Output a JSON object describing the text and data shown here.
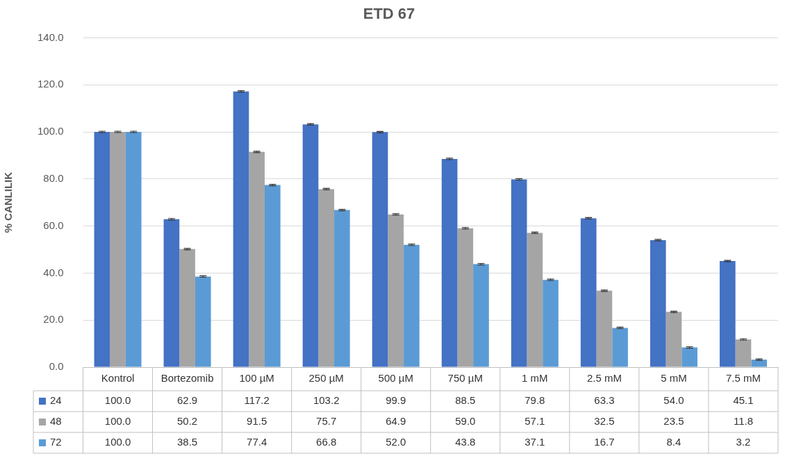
{
  "chart_data": {
    "type": "bar",
    "title": "ETD 67",
    "ylabel": "% CANLILIK",
    "categories": [
      "Kontrol",
      "Bortezomib",
      "100 µM",
      "250 µM",
      "500 µM",
      "750 µM",
      "1 mM",
      "2.5 mM",
      "5 mM",
      "7.5 mM"
    ],
    "series": [
      {
        "name": "24",
        "color": "#4472c4",
        "values": [
          100.0,
          62.9,
          117.2,
          103.2,
          99.9,
          88.5,
          79.8,
          63.3,
          54.0,
          45.1
        ],
        "value_labels": [
          "100.0",
          "62.9",
          "117.2",
          "103.2",
          "99.9",
          "88.5",
          "79.8",
          "63.3",
          "54.0",
          "45.1"
        ],
        "errors": [
          0.3,
          0.3,
          0.3,
          0.3,
          0.3,
          0.3,
          0.3,
          0.3,
          0.3,
          0.3
        ]
      },
      {
        "name": "48",
        "color": "#a5a5a5",
        "values": [
          100.0,
          50.2,
          91.5,
          75.7,
          64.9,
          59.0,
          57.1,
          32.5,
          23.5,
          11.8
        ],
        "value_labels": [
          "100.0",
          "50.2",
          "91.5",
          "75.7",
          "64.9",
          "59.0",
          "57.1",
          "32.5",
          "23.5",
          "11.8"
        ],
        "errors": [
          0.3,
          0.3,
          0.3,
          0.3,
          0.3,
          0.3,
          0.3,
          0.3,
          0.3,
          0.3
        ]
      },
      {
        "name": "72",
        "color": "#5b9bd5",
        "values": [
          100.0,
          38.5,
          77.4,
          66.8,
          52.0,
          43.8,
          37.1,
          16.7,
          8.4,
          3.2
        ],
        "value_labels": [
          "100.0",
          "38.5",
          "77.4",
          "66.8",
          "52.0",
          "43.8",
          "37.1",
          "16.7",
          "8.4",
          "3.2"
        ],
        "errors": [
          0.3,
          0.3,
          0.3,
          0.3,
          0.3,
          0.3,
          0.3,
          0.3,
          0.3,
          0.3
        ]
      }
    ],
    "ylim": [
      0,
      140
    ],
    "yticks": [
      {
        "value": 0,
        "label": "0.0"
      },
      {
        "value": 20,
        "label": "20.0"
      },
      {
        "value": 40,
        "label": "40.0"
      },
      {
        "value": 60,
        "label": "60.0"
      },
      {
        "value": 80,
        "label": "80.0"
      },
      {
        "value": 100,
        "label": "100.0"
      },
      {
        "value": 120,
        "label": "120.0"
      },
      {
        "value": 140,
        "label": "140.0"
      }
    ],
    "grid": "y",
    "legend": "bottom"
  }
}
